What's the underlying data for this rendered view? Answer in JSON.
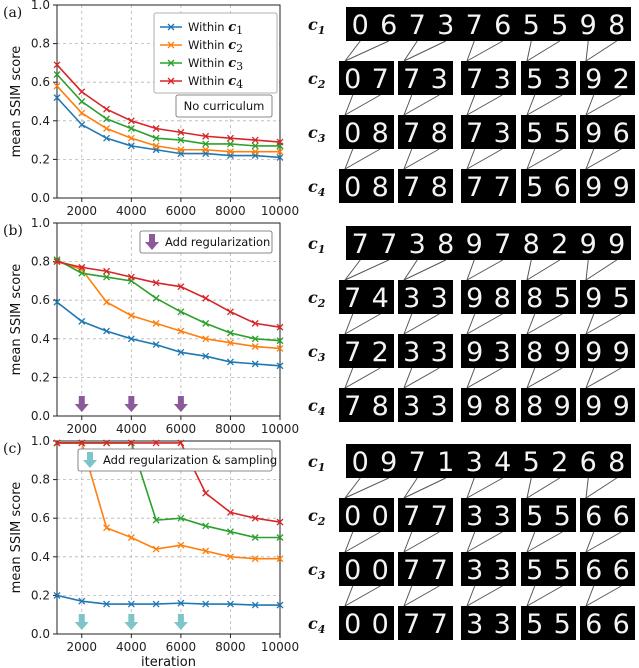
{
  "chart_data": [
    {
      "type": "line",
      "panel_label": "(a)",
      "xlabel": "",
      "ylabel": "mean SSIM score",
      "xlim": [
        1000,
        10000
      ],
      "ylim": [
        0.0,
        1.0
      ],
      "xticks": [
        "2000",
        "4000",
        "6000",
        "8000",
        "10000"
      ],
      "yticks": [
        "0.0",
        "0.2",
        "0.4",
        "0.6",
        "0.8",
        "1.0"
      ],
      "grid": true,
      "legend_position": "top-right",
      "annotation": "No curriculum",
      "x": [
        1000,
        2000,
        3000,
        4000,
        5000,
        6000,
        7000,
        8000,
        9000,
        10000
      ],
      "series": [
        {
          "name": "Within ",
          "sub": "1",
          "color": "#1f77b4",
          "values": [
            0.52,
            0.38,
            0.31,
            0.27,
            0.25,
            0.23,
            0.23,
            0.22,
            0.22,
            0.21
          ]
        },
        {
          "name": "Within ",
          "sub": "2",
          "color": "#ff7f0e",
          "values": [
            0.58,
            0.44,
            0.36,
            0.31,
            0.27,
            0.25,
            0.25,
            0.24,
            0.24,
            0.24
          ]
        },
        {
          "name": "Within ",
          "sub": "3",
          "color": "#2ca02c",
          "values": [
            0.64,
            0.5,
            0.41,
            0.36,
            0.31,
            0.3,
            0.28,
            0.28,
            0.27,
            0.27
          ]
        },
        {
          "name": "Within ",
          "sub": "4",
          "color": "#d62728",
          "values": [
            0.69,
            0.55,
            0.46,
            0.4,
            0.36,
            0.34,
            0.32,
            0.31,
            0.3,
            0.29
          ]
        }
      ]
    },
    {
      "type": "line",
      "panel_label": "(b)",
      "xlabel": "",
      "ylabel": "mean SSIM score",
      "xlim": [
        1000,
        10000
      ],
      "ylim": [
        0.0,
        1.0
      ],
      "xticks": [
        "2000",
        "4000",
        "6000",
        "8000",
        "10000"
      ],
      "yticks": [
        "0.0",
        "0.2",
        "0.4",
        "0.6",
        "0.8",
        "1.0"
      ],
      "grid": true,
      "annotation": "Add regularization",
      "marker_color": "#8b5a9b",
      "event_x": [
        2000,
        4000,
        6000
      ],
      "x": [
        1000,
        2000,
        3000,
        4000,
        5000,
        6000,
        7000,
        8000,
        9000,
        10000
      ],
      "series": [
        {
          "color": "#1f77b4",
          "values": [
            0.59,
            0.49,
            0.44,
            0.4,
            0.37,
            0.33,
            0.31,
            0.28,
            0.27,
            0.26
          ]
        },
        {
          "color": "#ff7f0e",
          "values": [
            0.8,
            0.76,
            0.59,
            0.52,
            0.48,
            0.44,
            0.4,
            0.38,
            0.36,
            0.35
          ]
        },
        {
          "color": "#2ca02c",
          "values": [
            0.81,
            0.74,
            0.72,
            0.7,
            0.61,
            0.54,
            0.48,
            0.43,
            0.4,
            0.39
          ]
        },
        {
          "color": "#d62728",
          "values": [
            0.8,
            0.77,
            0.75,
            0.72,
            0.69,
            0.67,
            0.61,
            0.54,
            0.48,
            0.46
          ]
        }
      ]
    },
    {
      "type": "line",
      "panel_label": "(c)",
      "xlabel": "iteration",
      "ylabel": "mean SSIM score",
      "xlim": [
        1000,
        10000
      ],
      "ylim": [
        0.0,
        1.0
      ],
      "xticks": [
        "2000",
        "4000",
        "6000",
        "8000",
        "10000"
      ],
      "yticks": [
        "0.0",
        "0.2",
        "0.4",
        "0.6",
        "0.8",
        "1.0"
      ],
      "grid": true,
      "annotation": "Add regularization & sampling",
      "marker_color": "#7ec4c8",
      "event_x": [
        2000,
        4000,
        6000
      ],
      "x": [
        1000,
        2000,
        3000,
        4000,
        5000,
        6000,
        7000,
        8000,
        9000,
        10000
      ],
      "series": [
        {
          "color": "#1f77b4",
          "values": [
            0.2,
            0.17,
            0.155,
            0.155,
            0.155,
            0.16,
            0.155,
            0.155,
            0.15,
            0.15
          ]
        },
        {
          "color": "#ff7f0e",
          "values": [
            0.99,
            0.99,
            0.55,
            0.5,
            0.44,
            0.46,
            0.43,
            0.4,
            0.39,
            0.39
          ]
        },
        {
          "color": "#2ca02c",
          "values": [
            0.99,
            0.99,
            0.99,
            0.99,
            0.59,
            0.6,
            0.56,
            0.53,
            0.5,
            0.5
          ]
        },
        {
          "color": "#d62728",
          "values": [
            0.99,
            0.99,
            0.99,
            0.99,
            0.99,
            0.99,
            0.73,
            0.63,
            0.6,
            0.58
          ]
        }
      ]
    }
  ],
  "clusters": [
    {
      "rows": [
        {
          "label": "c",
          "sub": "1",
          "digits": [
            "0",
            "6",
            "7",
            "3",
            "7",
            "6",
            "5",
            "5",
            "9",
            "8"
          ]
        },
        {
          "label": "c",
          "sub": "2",
          "digits": [
            "0",
            "7",
            "7",
            "3",
            "7",
            "3",
            "5",
            "3",
            "9",
            "2"
          ]
        },
        {
          "label": "c",
          "sub": "3",
          "digits": [
            "0",
            "8",
            "7",
            "8",
            "7",
            "3",
            "5",
            "5",
            "9",
            "6"
          ]
        },
        {
          "label": "c",
          "sub": "4",
          "digits": [
            "0",
            "8",
            "7",
            "8",
            "7",
            "7",
            "5",
            "6",
            "9",
            "9"
          ]
        }
      ]
    },
    {
      "rows": [
        {
          "label": "c",
          "sub": "1",
          "digits": [
            "7",
            "7",
            "3",
            "8",
            "9",
            "7",
            "8",
            "2",
            "9",
            "9"
          ]
        },
        {
          "label": "c",
          "sub": "2",
          "digits": [
            "7",
            "4",
            "3",
            "3",
            "9",
            "8",
            "8",
            "5",
            "9",
            "5"
          ]
        },
        {
          "label": "c",
          "sub": "3",
          "digits": [
            "7",
            "2",
            "3",
            "3",
            "9",
            "3",
            "8",
            "9",
            "9",
            "9"
          ]
        },
        {
          "label": "c",
          "sub": "4",
          "digits": [
            "7",
            "8",
            "3",
            "3",
            "9",
            "8",
            "8",
            "9",
            "9",
            "9"
          ]
        }
      ]
    },
    {
      "rows": [
        {
          "label": "c",
          "sub": "1",
          "digits": [
            "0",
            "9",
            "7",
            "1",
            "3",
            "4",
            "5",
            "2",
            "6",
            "8"
          ]
        },
        {
          "label": "c",
          "sub": "2",
          "digits": [
            "0",
            "0",
            "7",
            "7",
            "3",
            "3",
            "5",
            "5",
            "6",
            "6"
          ]
        },
        {
          "label": "c",
          "sub": "3",
          "digits": [
            "0",
            "0",
            "7",
            "7",
            "3",
            "3",
            "5",
            "5",
            "6",
            "6"
          ]
        },
        {
          "label": "c",
          "sub": "4",
          "digits": [
            "0",
            "0",
            "7",
            "7",
            "3",
            "3",
            "5",
            "5",
            "6",
            "6"
          ]
        }
      ]
    }
  ]
}
